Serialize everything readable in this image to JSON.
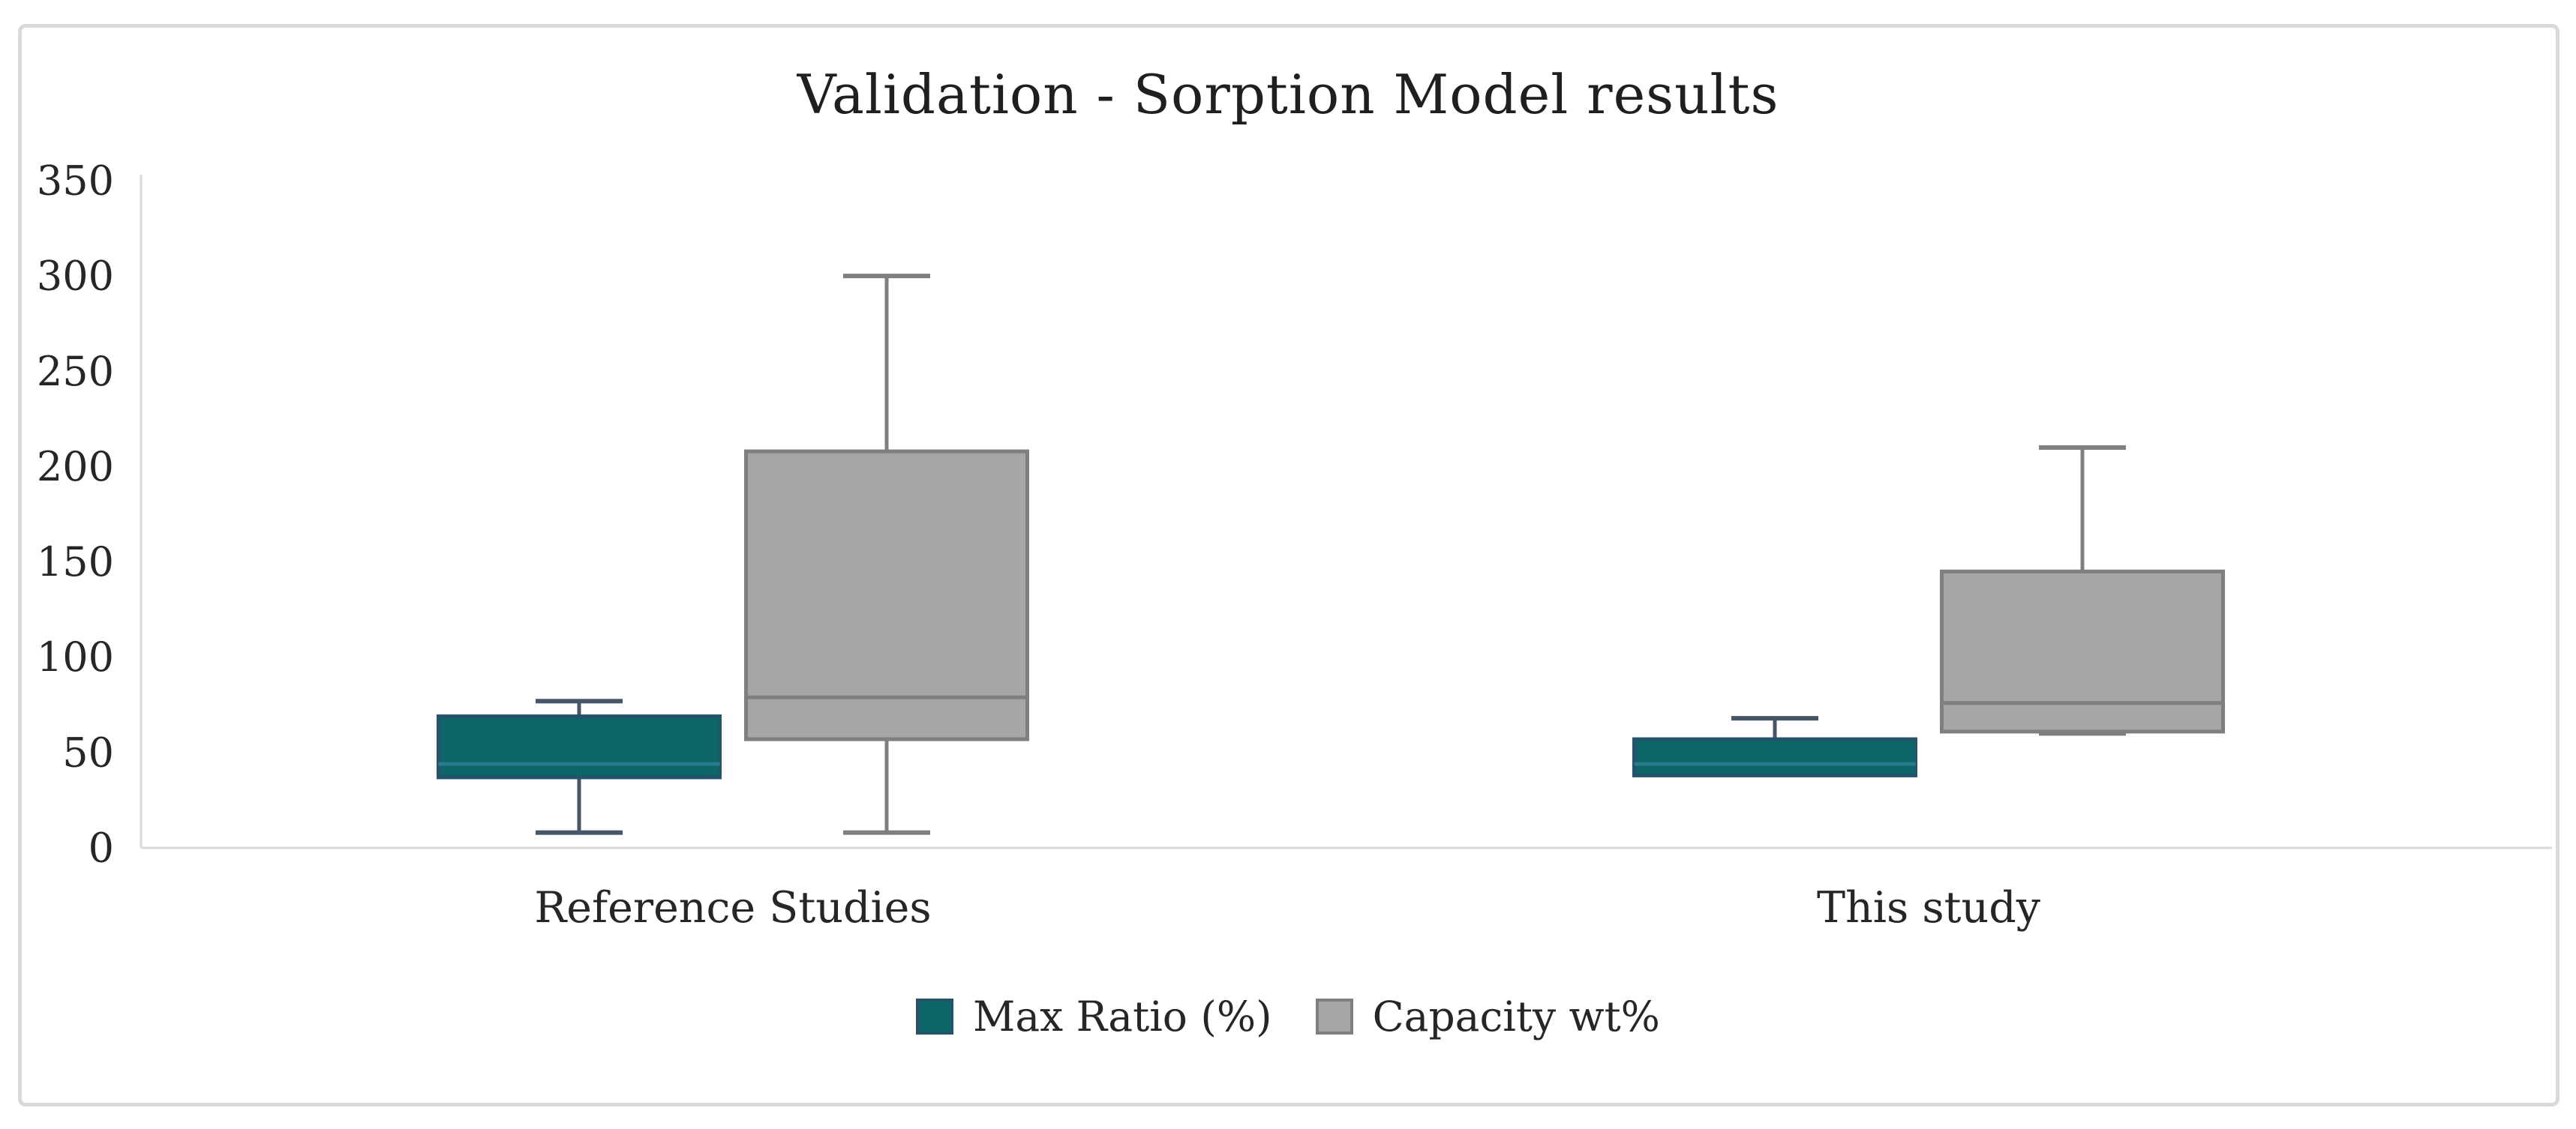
{
  "chart_data": {
    "type": "boxplot",
    "title": "Validation - Sorption Model results",
    "categories": [
      "Reference Studies",
      "This study"
    ],
    "y_axis": {
      "min": 0,
      "max": 350,
      "step": 50,
      "ticks": [
        0,
        50,
        100,
        150,
        200,
        250,
        300,
        350
      ]
    },
    "grid": "off",
    "legend_position": "bottom",
    "series": [
      {
        "name": "Max Ratio (%)",
        "fill_color": "#0C6566",
        "border_color": "#24536B",
        "whisker_color": "#475569",
        "median_color": "#2A7A8C",
        "boxes": [
          {
            "category": "Reference Studies",
            "min": 8,
            "q1": 37,
            "median": 44,
            "q3": 69,
            "max": 77
          },
          {
            "category": "This study",
            "min": 38,
            "q1": 38,
            "median": 44,
            "q3": 57,
            "max": 68
          }
        ]
      },
      {
        "name": "Capacity wt%",
        "fill_color": "#A6A6A6",
        "border_color": "#7F7F7F",
        "whisker_color": "#7F7F7F",
        "median_color": "#7F7F7F",
        "boxes": [
          {
            "category": "Reference Studies",
            "min": 8,
            "q1": 57,
            "median": 79,
            "q3": 208,
            "max": 300
          },
          {
            "category": "This study",
            "min": 60,
            "q1": 61,
            "median": 76,
            "q3": 145,
            "max": 210
          }
        ]
      }
    ],
    "colors": {
      "axis_line": "#D9D9D9",
      "tick_label": "#262626",
      "title_text": "#1F1F1F",
      "frame_border": "#D9D9D9"
    }
  }
}
